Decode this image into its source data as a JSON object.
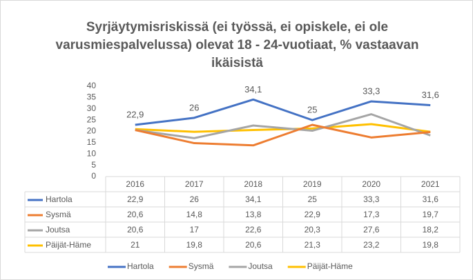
{
  "chart_data": {
    "type": "line",
    "title": "Syrjäytymisriskissä (ei työssä, ei opiskele, ei ole varusmiespalvelussa) olevat 18 - 24-vuotiaat, % vastaavan ikäisistä",
    "categories": [
      "2016",
      "2017",
      "2018",
      "2019",
      "2020",
      "2021"
    ],
    "series": [
      {
        "name": "Hartola",
        "color": "#4472c4",
        "values": [
          22.9,
          26,
          34.1,
          25,
          33.3,
          31.6
        ],
        "value_labels": [
          "22,9",
          "26",
          "34,1",
          "25",
          "33,3",
          "31,6"
        ]
      },
      {
        "name": "Sysmä",
        "color": "#ed7d31",
        "values": [
          20.6,
          14.8,
          13.8,
          22.9,
          17.3,
          19.7
        ],
        "value_labels": [
          "20,6",
          "14,8",
          "13,8",
          "22,9",
          "17,3",
          "19,7"
        ]
      },
      {
        "name": "Joutsa",
        "color": "#a5a5a5",
        "values": [
          20.6,
          17,
          22.6,
          20.3,
          27.6,
          18.2
        ],
        "value_labels": [
          "20,6",
          "17",
          "22,6",
          "20,3",
          "27,6",
          "18,2"
        ]
      },
      {
        "name": "Päijät-Häme",
        "color": "#ffc000",
        "values": [
          21,
          19.8,
          20.6,
          21.3,
          23.2,
          19.8
        ],
        "value_labels": [
          "21",
          "19,8",
          "20,6",
          "21,3",
          "23,2",
          "19,8"
        ]
      }
    ],
    "ylim": [
      0,
      40
    ],
    "yticks": [
      0,
      5,
      10,
      15,
      20,
      25,
      30,
      35,
      40
    ],
    "grid": false,
    "legend": "bottom"
  }
}
